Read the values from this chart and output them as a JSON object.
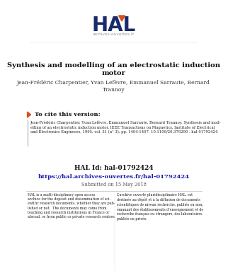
{
  "bg_color": "#ffffff",
  "hal_logo_text": "HAL",
  "hal_logo_color": "#1a2b6b",
  "hal_sub_text": "archives-ouvertes.fr",
  "hal_sub_color": "#999999",
  "triangle_color": "#d94f1e",
  "title": "Synthesis and modelling of an electrostatic induction\nmotor",
  "authors": "Jean-Frédéric Charpentier, Yvan Lefèvre, Emmanuel Sarraute, Bernard\nTrannoy",
  "cite_header": " To cite this version:",
  "cite_text": "Jean-Frédéric Charpentier, Yvan Lefèvre, Emmanuel Sarraute, Bernard Trannoy. Synthesis and mod-\nelling of an electrostatic induction motor. IEEE Transactions on Magnetics, Institute of Electrical\nand Electronics Engineers, 1995, vol. 31 (n° 3), pp. 1404-1407. 10.1109/20.376290 . hal-01792424",
  "hal_id_label": "HAL Id: hal-01792424",
  "hal_url": "https://hal.archives-ouvertes.fr/hal-01792424",
  "submitted": "Submitted on 15 May 2018",
  "left_body": "HAL is a multi-disciplinary open access\narchive for the deposit and dissemination of sci-\nentific research documents, whether they are pub-\nlished or not.  The documents may come from\nteaching and research institutions in France or\nabroad, or from public or private research centres.",
  "right_body": "L’archive ouverte pluridisciplinaire HAL, est\ndestinée au dépôt et à la diffusion de documents\nscientifiques de niveau recherche, publiés ou non,\némanant des établissements d’enseignement et de\nrecherche français ou étrangers, des laboratoires\npubliés ou privés."
}
